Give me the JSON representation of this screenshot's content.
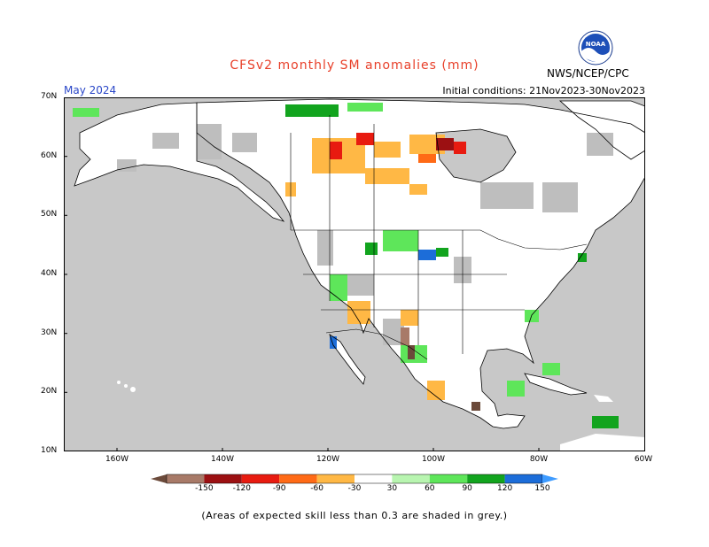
{
  "title": "CFSv2 monthly SM anomalies (mm)",
  "valid_month": "May 2024",
  "initial_conditions": "Initial conditions: 21Nov2023-30Nov2023",
  "agency": "NWS/NCEP/CPC",
  "logo": {
    "text": "NOAA",
    "icon": "noaa-logo-icon"
  },
  "lat_labels": [
    "70N",
    "60N",
    "50N",
    "40N",
    "30N",
    "20N",
    "10N"
  ],
  "lon_labels": [
    "160W",
    "140W",
    "120W",
    "100W",
    "80W",
    "60W"
  ],
  "colorbar": {
    "ticks": [
      "-150",
      "-120",
      "-90",
      "-60",
      "-30",
      "30",
      "60",
      "90",
      "120",
      "150"
    ],
    "colors": [
      "#6b4a3a",
      "#a87a68",
      "#9c1012",
      "#e81b10",
      "#ff6a16",
      "#ffb845",
      "#ffffff",
      "#b8f5b0",
      "#5ee65a",
      "#12a41e",
      "#1c6dd9",
      "#3e9bff"
    ]
  },
  "footnote": "(Areas of expected skill less than 0.3 are shaded in grey.)",
  "colors": {
    "ocean_grey": "#c8c8c8",
    "land_white": "#ffffff",
    "dry": "#ffb845",
    "wet": "#5ee65a"
  }
}
